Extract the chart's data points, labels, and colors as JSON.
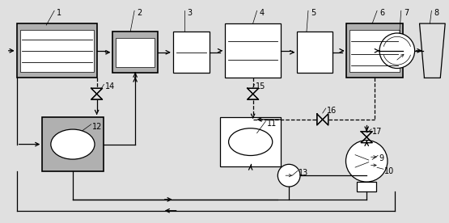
{
  "fig_width": 5.55,
  "fig_height": 2.76,
  "dpi": 100,
  "bg_color": "#e0e0e0",
  "white": "#ffffff",
  "gray": "#b0b0b0",
  "black": "#000000"
}
